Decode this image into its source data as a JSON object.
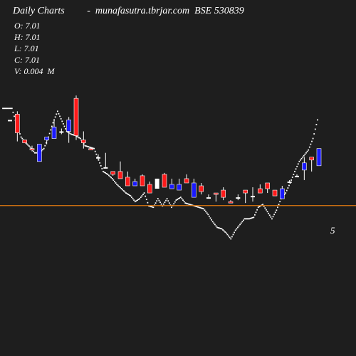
{
  "header": {
    "title": "Daily Charts         -  munafasutra.tbrjar.com  BSE 530839"
  },
  "ohlc": {
    "open": "O: 7.01",
    "high": "H: 7.01",
    "low": "L: 7.01",
    "close": "C: 7.01",
    "volume": "V: 0.004  M"
  },
  "chart_data": {
    "type": "candlestick",
    "title": "Daily Charts         -  munafasutra.tbrjar.com  BSE 530839",
    "price_range": [
      4,
      11.4
    ],
    "reference_line": {
      "value": 7.01,
      "color": "#e07a10"
    },
    "right_label": "5",
    "colors": {
      "up": "#1a1aff",
      "down": "#ff1a1a",
      "flat": "#ffffff",
      "line": "#ffffff",
      "background": "#1e1e1e"
    },
    "candles": [
      {
        "o": 10.0,
        "h": 10.0,
        "l": 10.0,
        "c": 10.0,
        "dir": "flat"
      },
      {
        "o": 10.2,
        "h": 10.3,
        "l": 9.25,
        "c": 9.55,
        "dir": "down"
      },
      {
        "o": 9.3,
        "h": 9.3,
        "l": 9.2,
        "c": 9.2,
        "dir": "down"
      },
      {
        "o": 9.0,
        "h": 9.1,
        "l": 8.9,
        "c": 8.95,
        "dir": "down"
      },
      {
        "o": 8.55,
        "h": 9.15,
        "l": 8.55,
        "c": 9.15,
        "dir": "up"
      },
      {
        "o": 9.3,
        "h": 9.4,
        "l": 9.15,
        "c": 9.4,
        "dir": "up"
      },
      {
        "o": 9.35,
        "h": 10.0,
        "l": 9.35,
        "c": 9.75,
        "dir": "up"
      },
      {
        "o": 9.6,
        "h": 9.7,
        "l": 9.5,
        "c": 9.6,
        "dir": "flat"
      },
      {
        "o": 9.6,
        "h": 10.1,
        "l": 9.2,
        "c": 10.0,
        "dir": "up"
      },
      {
        "o": 10.75,
        "h": 10.85,
        "l": 9.3,
        "c": 9.45,
        "dir": "down"
      },
      {
        "o": 9.3,
        "h": 9.6,
        "l": 9.0,
        "c": 9.2,
        "dir": "down"
      },
      {
        "o": 9.0,
        "h": 9.05,
        "l": 8.95,
        "c": 8.95,
        "dir": "down"
      },
      {
        "o": 8.7,
        "h": 8.8,
        "l": 8.6,
        "c": 8.7,
        "dir": "flat"
      },
      {
        "o": 8.35,
        "h": 8.85,
        "l": 8.35,
        "c": 8.35,
        "dir": "flat"
      },
      {
        "o": 8.2,
        "h": 8.2,
        "l": 8.05,
        "c": 8.1,
        "dir": "down"
      },
      {
        "o": 8.2,
        "h": 8.55,
        "l": 7.95,
        "c": 7.95,
        "dir": "down"
      },
      {
        "o": 8.0,
        "h": 8.2,
        "l": 7.7,
        "c": 7.7,
        "dir": "down"
      },
      {
        "o": 7.85,
        "h": 7.95,
        "l": 7.7,
        "c": 7.7,
        "dir": "up"
      },
      {
        "o": 7.7,
        "h": 8.1,
        "l": 7.7,
        "c": 8.05,
        "dir": "down"
      },
      {
        "o": 7.75,
        "h": 7.85,
        "l": 7.45,
        "c": 7.45,
        "dir": "down"
      },
      {
        "o": 7.6,
        "h": 7.95,
        "l": 7.6,
        "c": 7.95,
        "dir": "flat"
      },
      {
        "o": 8.1,
        "h": 8.15,
        "l": 7.65,
        "c": 7.65,
        "dir": "down"
      },
      {
        "o": 7.6,
        "h": 7.95,
        "l": 7.6,
        "c": 7.75,
        "dir": "up"
      },
      {
        "o": 7.75,
        "h": 7.95,
        "l": 7.55,
        "c": 7.55,
        "dir": "up"
      },
      {
        "o": 7.8,
        "h": 8.1,
        "l": 7.8,
        "c": 7.95,
        "dir": "down"
      },
      {
        "o": 7.8,
        "h": 7.95,
        "l": 7.3,
        "c": 7.3,
        "dir": "up"
      },
      {
        "o": 7.7,
        "h": 7.8,
        "l": 7.4,
        "c": 7.5,
        "dir": "down"
      },
      {
        "o": 7.3,
        "h": 7.4,
        "l": 7.3,
        "c": 7.3,
        "dir": "flat"
      },
      {
        "o": 7.45,
        "h": 7.45,
        "l": 7.15,
        "c": 7.4,
        "dir": "down"
      },
      {
        "o": 7.55,
        "h": 7.65,
        "l": 7.2,
        "c": 7.3,
        "dir": "down"
      },
      {
        "o": 7.15,
        "h": 7.2,
        "l": 7.15,
        "c": 7.15,
        "dir": "down"
      },
      {
        "o": 7.3,
        "h": 7.4,
        "l": 7.2,
        "c": 7.3,
        "dir": "flat"
      },
      {
        "o": 7.55,
        "h": 7.55,
        "l": 7.1,
        "c": 7.45,
        "dir": "down"
      },
      {
        "o": 7.35,
        "h": 7.65,
        "l": 7.15,
        "c": 7.35,
        "dir": "flat"
      },
      {
        "o": 7.6,
        "h": 7.75,
        "l": 7.45,
        "c": 7.45,
        "dir": "down"
      },
      {
        "o": 7.8,
        "h": 7.8,
        "l": 7.45,
        "c": 7.6,
        "dir": "down"
      },
      {
        "o": 7.55,
        "h": 7.55,
        "l": 7.35,
        "c": 7.35,
        "dir": "down"
      },
      {
        "o": 7.25,
        "h": 7.7,
        "l": 7.25,
        "c": 7.6,
        "dir": "up"
      },
      {
        "o": 7.85,
        "h": 7.9,
        "l": 7.8,
        "c": 7.85,
        "dir": "flat"
      },
      {
        "o": 8.05,
        "h": 8.1,
        "l": 8.0,
        "c": 8.05,
        "dir": "flat"
      },
      {
        "o": 8.25,
        "h": 8.7,
        "l": 7.9,
        "c": 8.5,
        "dir": "up"
      },
      {
        "o": 8.7,
        "h": 8.7,
        "l": 8.2,
        "c": 8.6,
        "dir": "down"
      },
      {
        "o": 8.4,
        "h": 9.0,
        "l": 8.4,
        "c": 9.0,
        "dir": "up"
      }
    ],
    "line": [
      10.4,
      10.4,
      10.4,
      9.85,
      9.4,
      9.2,
      9.05,
      8.85,
      8.85,
      9.0,
      9.4,
      9.9,
      10.3,
      9.95,
      9.6,
      9.5,
      9.45,
      9.35,
      9.1,
      9.05,
      9.0,
      8.6,
      8.2,
      8.1,
      7.95,
      7.75,
      7.6,
      7.45,
      7.35,
      7.15,
      7.25,
      7.45,
      7.0,
      6.95,
      7.25,
      7.0,
      7.25,
      6.95,
      7.2,
      7.3,
      7.1,
      7.05,
      7.0,
      6.95,
      6.9,
      6.7,
      6.45,
      6.25,
      6.2,
      6.05,
      5.85,
      6.15,
      6.35,
      6.55,
      6.55,
      6.6,
      6.95,
      7.05,
      6.8,
      6.55,
      6.85,
      7.25,
      7.45,
      7.8,
      8.2,
      8.55,
      8.75,
      8.95,
      9.35,
      10.0
    ]
  }
}
